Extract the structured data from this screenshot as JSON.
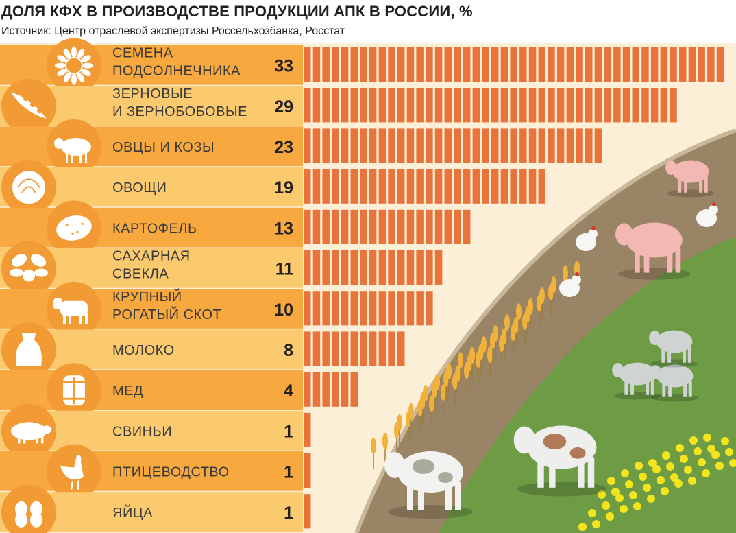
{
  "title": "ДОЛЯ КФХ В ПРОИЗВОДСТВЕ ПРОДУКЦИИ АПК В РОССИИ, %",
  "subtitle": "Источник: Центр отраслевой экспертизы Россельхозбанка, Росстат",
  "colors": {
    "bar": "#e8743b",
    "stripe_a": "#f7a83e",
    "stripe_b": "#fbc96e",
    "circle": "#f29a33",
    "field_top": "#9a8466",
    "field_grass": "#6d9c45",
    "background_right": "#fbefd8"
  },
  "chart_data": {
    "type": "bar",
    "orientation": "horizontal",
    "unit": "%",
    "xlim": [
      0,
      33
    ],
    "categories": [
      {
        "lines": [
          "СЕМЕНА",
          "ПОДСОЛНЕЧНИКА"
        ],
        "icon": "sunflower-icon"
      },
      {
        "lines": [
          "ЗЕРНОВЫЕ",
          "И ЗЕРНОБОБОВЫЕ"
        ],
        "icon": "pea-pod-icon"
      },
      {
        "lines": [
          "ОВЦЫ И КОЗЫ"
        ],
        "icon": "sheep-icon"
      },
      {
        "lines": [
          "ОВОЩИ"
        ],
        "icon": "cabbage-icon"
      },
      {
        "lines": [
          "КАРТОФЕЛЬ"
        ],
        "icon": "potato-icon"
      },
      {
        "lines": [
          "САХАРНАЯ",
          "СВЕКЛА"
        ],
        "icon": "sugar-beet-icon"
      },
      {
        "lines": [
          "КРУПНЫЙ",
          "РОГАТЫЙ СКОТ"
        ],
        "icon": "cow-icon"
      },
      {
        "lines": [
          "МОЛОКО"
        ],
        "icon": "milk-jug-icon"
      },
      {
        "lines": [
          "МЕД"
        ],
        "icon": "honey-barrel-icon"
      },
      {
        "lines": [
          "СВИНЬИ"
        ],
        "icon": "pig-icon"
      },
      {
        "lines": [
          "ПТИЦЕВОДСТВО"
        ],
        "icon": "chicken-icon"
      },
      {
        "lines": [
          "ЯЙЦА"
        ],
        "icon": "eggs-icon"
      }
    ],
    "values": [
      33,
      29,
      23,
      19,
      13,
      11,
      10,
      8,
      4,
      1,
      1,
      1
    ]
  }
}
